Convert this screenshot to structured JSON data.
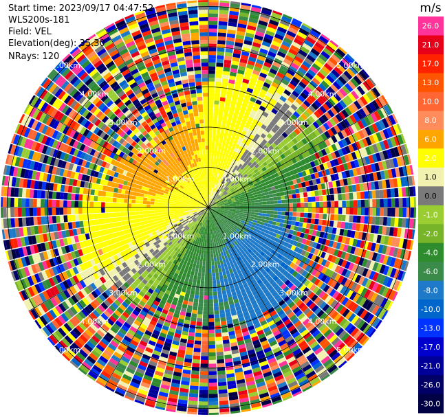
{
  "header": {
    "start_time": "Start time: 2023/09/17 04:47:52",
    "site": "WLS200s-181",
    "field": "Field: VEL",
    "elevation": "Elevation(deg): 35.30",
    "nrays": "NRays: 120"
  },
  "chart_data": {
    "type": "ppi",
    "unit": "m/s",
    "nrays": 120,
    "max_range_km": 5.0,
    "ring_labels_km": [
      "1.00km",
      "2.00km",
      "3.00km",
      "4.00km",
      "5.00km"
    ],
    "spoke_angles_deg": [
      0,
      30,
      60,
      90,
      120,
      150,
      180,
      210,
      240,
      270,
      300,
      330
    ],
    "colorbar": [
      {
        "label": "26.0",
        "color": "#ff3399"
      },
      {
        "label": "21.0",
        "color": "#e8001a"
      },
      {
        "label": "17.0",
        "color": "#ff2200"
      },
      {
        "label": "13.0",
        "color": "#ff5500"
      },
      {
        "label": "10.0",
        "color": "#ff6633"
      },
      {
        "label": "8.0",
        "color": "#ff8c5a"
      },
      {
        "label": "6.0",
        "color": "#ffa500"
      },
      {
        "label": "2.0",
        "color": "#ffff00"
      },
      {
        "label": "1.0",
        "color": "#f2f2b0"
      },
      {
        "label": "0.0",
        "color": "#7a7a7a"
      },
      {
        "label": "-1.0",
        "color": "#9acd32"
      },
      {
        "label": "-2.0",
        "color": "#78b42a"
      },
      {
        "label": "-4.0",
        "color": "#2e8b2e"
      },
      {
        "label": "-6.0",
        "color": "#3a8a4a"
      },
      {
        "label": "-8.0",
        "color": "#1e7ac8"
      },
      {
        "label": "-10.0",
        "color": "#0066cc"
      },
      {
        "label": "-13.0",
        "color": "#0033ff"
      },
      {
        "label": "-17.0",
        "color": "#0000cc"
      },
      {
        "label": "-21.0",
        "color": "#000099"
      },
      {
        "label": "-26.0",
        "color": "#000066"
      },
      {
        "label": "-30.0",
        "color": "#000044"
      }
    ]
  }
}
